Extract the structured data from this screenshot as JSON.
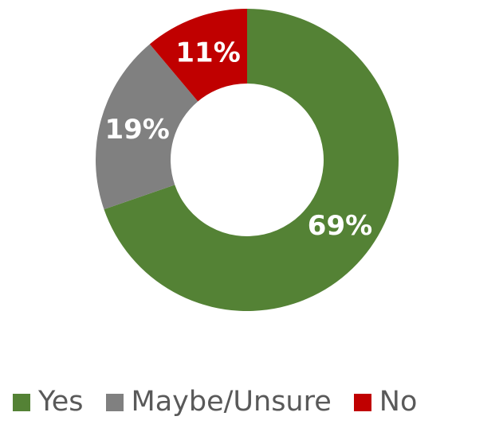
{
  "chart_data": {
    "type": "pie",
    "donut": true,
    "categories": [
      "Yes",
      "Maybe/Unsure",
      "No"
    ],
    "values": [
      69,
      19,
      11
    ],
    "value_labels": [
      "69%",
      "19%",
      "11%"
    ],
    "colors": [
      "#548235",
      "#808080",
      "#C00000"
    ],
    "title": "",
    "legend_position": "bottom",
    "start_angle": "12 o'clock",
    "direction": "clockwise"
  },
  "legend": {
    "items": [
      {
        "label": "Yes",
        "color": "#548235"
      },
      {
        "label": "Maybe/Unsure",
        "color": "#808080"
      },
      {
        "label": "No",
        "color": "#C00000"
      }
    ]
  }
}
